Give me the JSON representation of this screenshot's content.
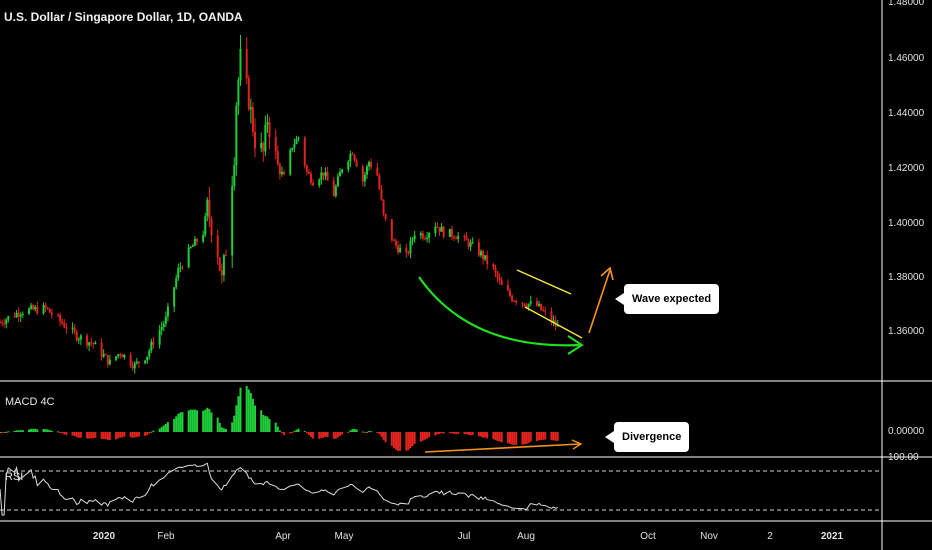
{
  "title": "U.S. Dollar / Singapore Dollar, 1D, OANDA",
  "price_axis": [
    "1.48000",
    "1.46000",
    "1.44000",
    "1.42000",
    "1.40000",
    "1.38000",
    "1.36000"
  ],
  "macd": {
    "label": "MACD 4C",
    "tick": "0.00000"
  },
  "rsi": {
    "label": "RSI",
    "tick": "100.00"
  },
  "x_axis": [
    "2020",
    "Feb",
    "Apr",
    "May",
    "Jul",
    "Aug",
    "Oct",
    "Nov",
    "2",
    "2021"
  ],
  "annotations": {
    "wave": "Wave expected",
    "divergence": "Divergence"
  },
  "colors": {
    "up": "#1fcf3a",
    "down": "#e0231e",
    "curve": "#22dd22",
    "channel": "#f5e642",
    "arrow": "#f7931e",
    "rsi": "#dcdcdc"
  },
  "chart_data": {
    "type": "candlestick",
    "series": "USD/SGD daily",
    "x_range": [
      "2019-12-02",
      "2021-01-15"
    ],
    "ylim": [
      1.345,
      1.48
    ],
    "close": [
      [
        1.363,
        "2019-12-02"
      ],
      [
        1.367,
        "2019-12-12"
      ],
      [
        1.368,
        "2019-12-24"
      ],
      [
        1.358,
        "2020-01-08"
      ],
      [
        1.355,
        "2020-01-16"
      ],
      [
        1.348,
        "2020-01-24"
      ],
      [
        1.352,
        "2020-01-29"
      ],
      [
        1.347,
        "2020-02-05"
      ],
      [
        1.351,
        "2020-02-11"
      ],
      [
        1.356,
        "2020-02-14"
      ],
      [
        1.364,
        "2020-02-20"
      ],
      [
        1.382,
        "2020-02-26"
      ],
      [
        1.39,
        "2020-03-03"
      ],
      [
        1.396,
        "2020-03-09"
      ],
      [
        1.405,
        "2020-03-11"
      ],
      [
        1.389,
        "2020-03-16"
      ],
      [
        1.378,
        "2020-03-18"
      ],
      [
        1.39,
        "2020-03-20"
      ],
      [
        1.425,
        "2020-03-24"
      ],
      [
        1.444,
        "2020-03-25"
      ],
      [
        1.46,
        "2020-03-27"
      ],
      [
        1.445,
        "2020-03-31"
      ],
      [
        1.43,
        "2020-04-03"
      ],
      [
        1.425,
        "2020-04-07"
      ],
      [
        1.438,
        "2020-04-09"
      ],
      [
        1.42,
        "2020-04-14"
      ],
      [
        1.416,
        "2020-04-17"
      ],
      [
        1.428,
        "2020-04-21"
      ],
      [
        1.431,
        "2020-04-24"
      ],
      [
        1.418,
        "2020-04-28"
      ],
      [
        1.415,
        "2020-05-01"
      ],
      [
        1.418,
        "2020-05-06"
      ],
      [
        1.41,
        "2020-05-11"
      ],
      [
        1.42,
        "2020-05-15"
      ],
      [
        1.426,
        "2020-05-20"
      ],
      [
        1.415,
        "2020-05-25"
      ],
      [
        1.422,
        "2020-05-28"
      ],
      [
        1.417,
        "2020-06-01"
      ],
      [
        1.402,
        "2020-06-04"
      ],
      [
        1.392,
        "2020-06-09"
      ],
      [
        1.387,
        "2020-06-15"
      ],
      [
        1.396,
        "2020-06-19"
      ],
      [
        1.395,
        "2020-06-24"
      ],
      [
        1.399,
        "2020-06-29"
      ],
      [
        1.396,
        "2020-07-03"
      ],
      [
        1.395,
        "2020-07-09"
      ],
      [
        1.392,
        "2020-07-15"
      ],
      [
        1.388,
        "2020-07-21"
      ],
      [
        1.382,
        "2020-07-27"
      ],
      [
        1.376,
        "2020-07-31"
      ],
      [
        1.372,
        "2020-08-05"
      ],
      [
        1.37,
        "2020-08-11"
      ],
      [
        1.369,
        "2020-08-17"
      ],
      [
        1.366,
        "2020-08-21"
      ],
      [
        1.361,
        "2020-08-27"
      ]
    ],
    "macd_histogram_note": "positive Feb–Apr, negative from June with rising lows (divergence)",
    "rsi_range": [
      0,
      100
    ]
  }
}
